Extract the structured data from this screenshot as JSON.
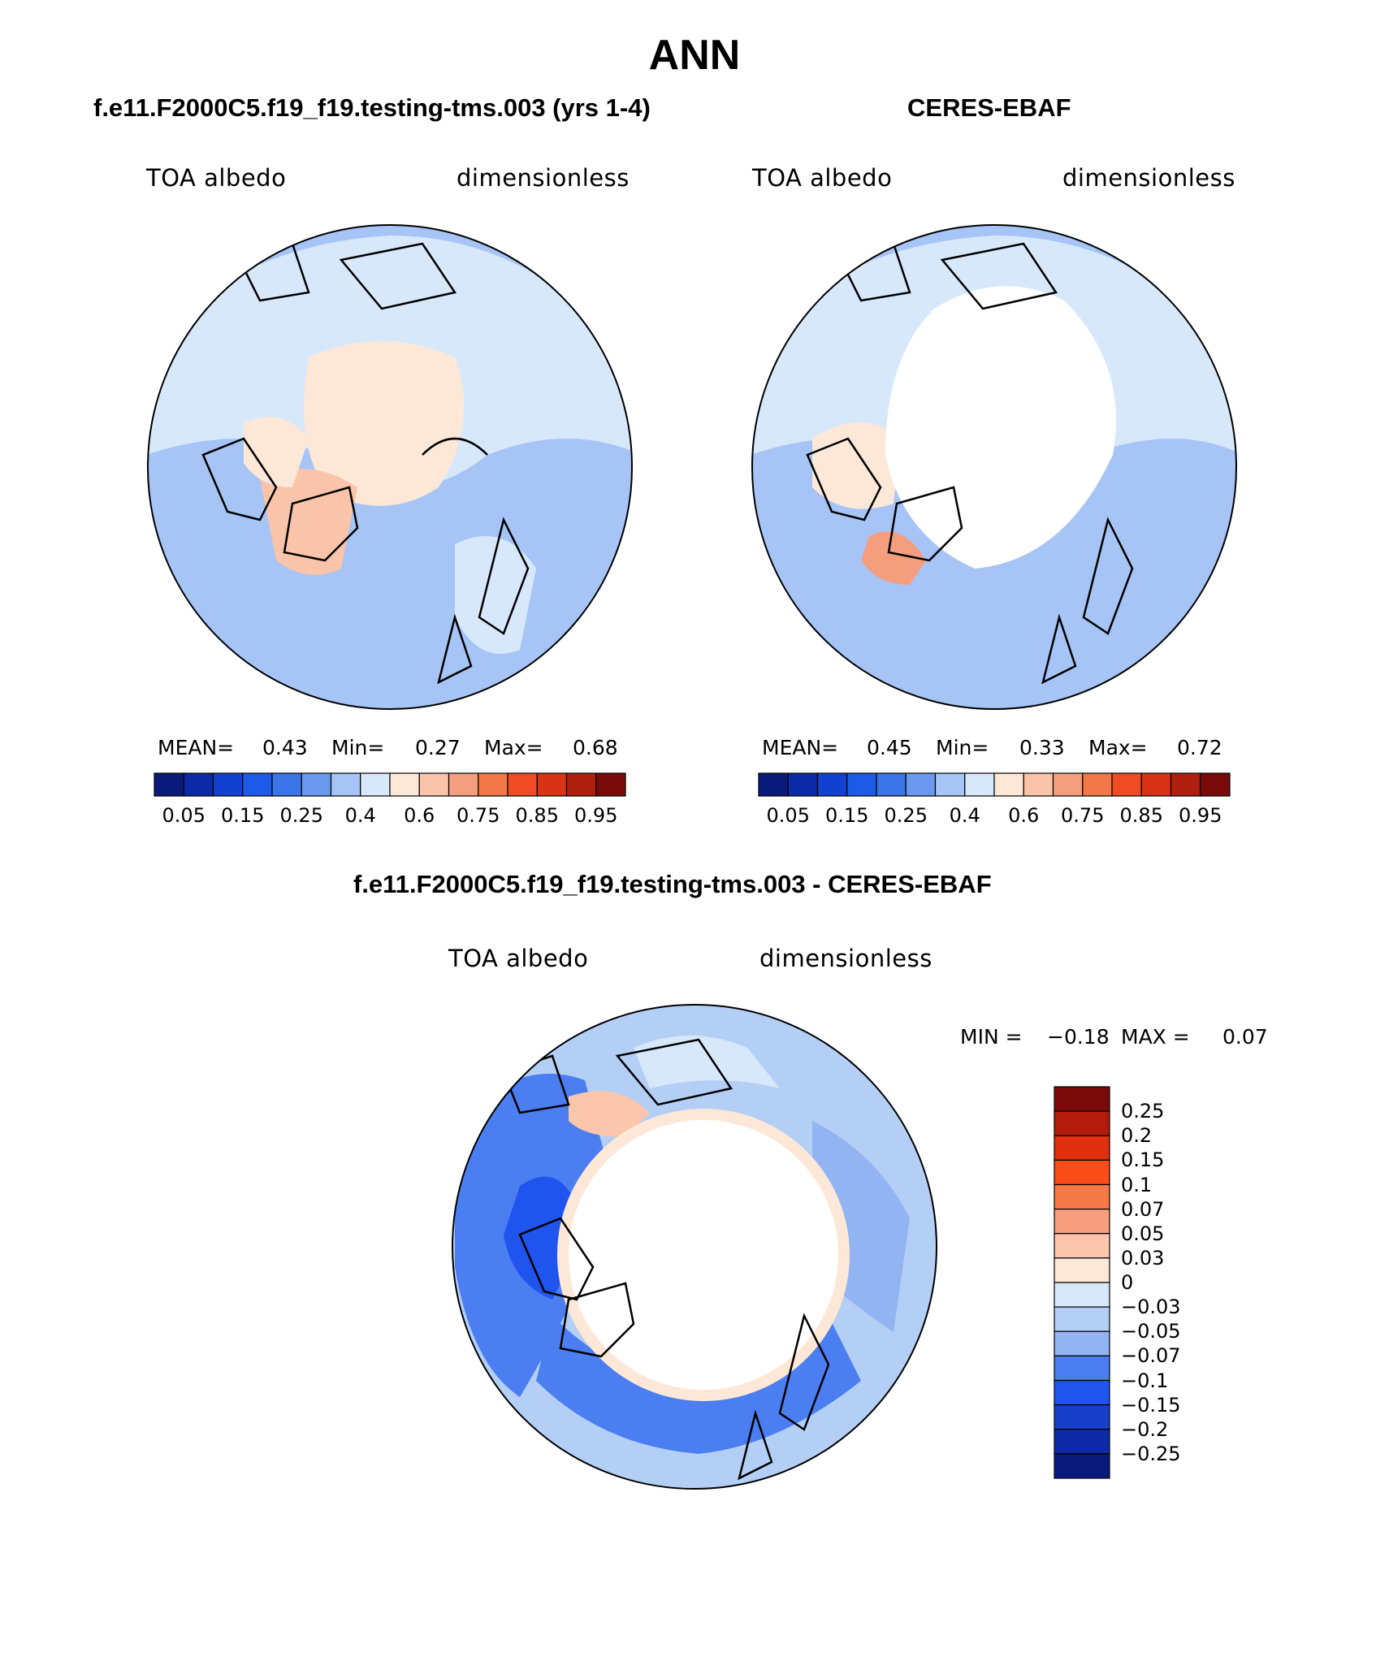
{
  "figure_title": "ANN",
  "panels": [
    {
      "heading": "f.e11.F2000C5.f19_f19.testing-tms.003 (yrs 1-4)",
      "variable": "TOA albedo",
      "units": "dimensionless",
      "mean_label": "MEAN=",
      "mean": "0.43",
      "min_label": "Min=",
      "min": "0.27",
      "max_label": "Max=",
      "max": "0.68"
    },
    {
      "heading": "CERES-EBAF",
      "variable": "TOA albedo",
      "units": "dimensionless",
      "mean_label": "MEAN=",
      "mean": "0.45",
      "min_label": "Min=",
      "min": "0.33",
      "max_label": "Max=",
      "max": "0.72"
    }
  ],
  "diff_panel": {
    "heading": "f.e11.F2000C5.f19_f19.testing-tms.003 - CERES-EBAF",
    "variable": "TOA albedo",
    "units": "dimensionless",
    "min_label": "MIN =",
    "min": "−0.18",
    "max_label": "MAX =",
    "max": "0.07"
  },
  "colorbar_abs": {
    "colors": [
      "#0a1a7a",
      "#0b2aa8",
      "#1240d0",
      "#1e5ae8",
      "#3a76ea",
      "#6a98ee",
      "#a6c4f5",
      "#d8e8fb",
      "#fde8d8",
      "#f9c4aa",
      "#f59e7e",
      "#f27848",
      "#f04b22",
      "#d93216",
      "#b01e0e",
      "#7a0a0a"
    ],
    "tick_labels": [
      "0.05",
      "0.15",
      "0.25",
      "0.4",
      "0.6",
      "0.75",
      "0.85",
      "0.95"
    ]
  },
  "colorbar_diff": {
    "colors": [
      "#7a0a0a",
      "#b31c0a",
      "#e0300f",
      "#fb4c1a",
      "#f57a48",
      "#f79e7e",
      "#fbc6ac",
      "#fde8d8",
      "#d8e8fb",
      "#b4cff5",
      "#92b4f2",
      "#4b7ef0",
      "#1f55ee",
      "#173fc9",
      "#0f2aa6",
      "#0a1a7c"
    ],
    "tick_labels": [
      "0.25",
      "0.2",
      "0.15",
      "0.1",
      "0.07",
      "0.05",
      "0.03",
      "0",
      "−0.03",
      "−0.05",
      "−0.07",
      "−0.1",
      "−0.15",
      "−0.2",
      "−0.25"
    ]
  }
}
